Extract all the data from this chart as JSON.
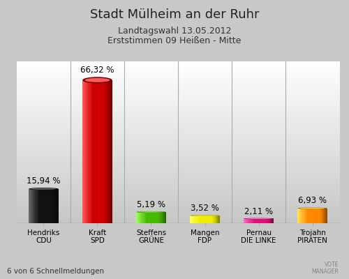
{
  "title": "Stadt Mülheim an der Ruhr",
  "subtitle1": "Landtagswahl 13.05.2012",
  "subtitle2": "Erststimmen 09 Heißen - Mitte",
  "footnote": "6 von 6 Schnellmeldungen",
  "categories": [
    "Hendriks\nCDU",
    "Kraft\nSPD",
    "Steffens\nGRÜNE",
    "Mangen\nFDP",
    "Pernau\nDIE LINKE",
    "Trojahn\nPIRATEN"
  ],
  "values": [
    15.94,
    66.32,
    5.19,
    3.52,
    2.11,
    6.93
  ],
  "labels": [
    "15,94 %",
    "66,32 %",
    "5,19 %",
    "3,52 %",
    "2,11 %",
    "6,93 %"
  ],
  "bar_colors": [
    "#111111",
    "#cc0000",
    "#44bb00",
    "#eeee00",
    "#dd1177",
    "#ff8800"
  ],
  "bar_shadow_colors": [
    "#555555",
    "#ff6666",
    "#88dd44",
    "#ffff88",
    "#ff88bb",
    "#ffbb66"
  ],
  "background_top": "#ffffff",
  "background_bottom": "#c8c8c8",
  "ylim": [
    0,
    75
  ],
  "title_fontsize": 14,
  "subtitle_fontsize": 9
}
